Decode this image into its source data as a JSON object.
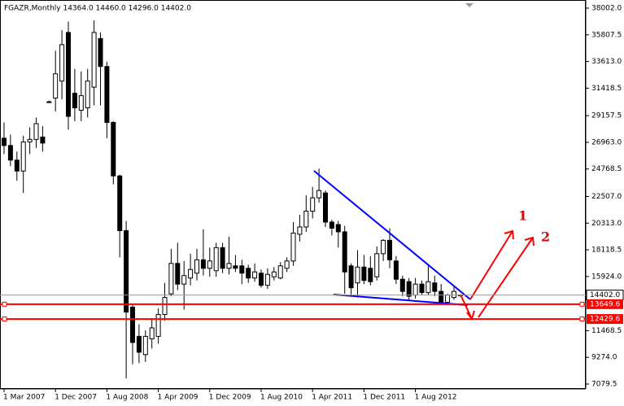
{
  "chart_data": {
    "type": "candlestick",
    "title": "FGAZR,Monthly  14364.0 14460.0 14296.0 14402.0",
    "categories": [
      "1 Mar 2007",
      null,
      null,
      null,
      null,
      null,
      null,
      null,
      "1 Dec 2007",
      null,
      null,
      null,
      null,
      null,
      null,
      null,
      "1 Aug 2008",
      null,
      null,
      null,
      null,
      null,
      null,
      null,
      "1 Apr 2009",
      null,
      null,
      null,
      null,
      null,
      null,
      null,
      "1 Dec 2009",
      null,
      null,
      null,
      null,
      null,
      null,
      null,
      "1 Aug 2010",
      null,
      null,
      null,
      null,
      null,
      null,
      null,
      "1 Apr 2011",
      null,
      null,
      null,
      null,
      null,
      null,
      null,
      "1 Dec 2011",
      null,
      null,
      null,
      null,
      null,
      null,
      null,
      "1 Aug 2012",
      null,
      null,
      null,
      null,
      null,
      null,
      null
    ],
    "open": [
      27300,
      26700,
      25500,
      24600,
      27000,
      27200,
      27400,
      30300,
      30600,
      32000,
      36000,
      31000,
      29600,
      29800,
      31500,
      35500,
      33200,
      28600,
      24200,
      19700,
      13400,
      11000,
      9500,
      10800,
      11000,
      12800,
      14500,
      17000,
      15300,
      15800,
      16200,
      17300,
      16600,
      16400,
      18300,
      16600,
      16800,
      16800,
      16600,
      15800,
      16200,
      15200,
      15900,
      15800,
      16600,
      17200,
      19400,
      20000,
      21300,
      22400,
      22800,
      20400,
      20200,
      19600,
      16800,
      15400,
      16700,
      16600,
      15900,
      17800,
      18900,
      17200,
      15700,
      15500,
      14400,
      15300,
      14600,
      15400,
      14700,
      13800,
      14200,
      14364
    ],
    "high": [
      28600,
      27600,
      26200,
      27500,
      28200,
      29000,
      28300,
      30400,
      34500,
      36200,
      36900,
      33000,
      32800,
      33000,
      37000,
      36000,
      33600,
      28700,
      24300,
      20500,
      13600,
      12000,
      11500,
      12500,
      13300,
      15400,
      18200,
      18700,
      17200,
      17800,
      18200,
      19800,
      18300,
      18700,
      18700,
      19200,
      17700,
      17300,
      16900,
      17000,
      16500,
      16600,
      16700,
      17100,
      17500,
      20400,
      21000,
      22600,
      23300,
      24800,
      23000,
      20600,
      20500,
      20100,
      17000,
      18100,
      17700,
      17600,
      18400,
      19000,
      19900,
      17600,
      16000,
      15800,
      15800,
      15600,
      16800,
      16000,
      15300,
      14500,
      15100,
      14460
    ],
    "low": [
      26000,
      25000,
      23800,
      22800,
      26000,
      26500,
      26200,
      30200,
      29500,
      30500,
      28000,
      28700,
      28700,
      29000,
      30000,
      30000,
      27300,
      23500,
      17500,
      7550,
      8700,
      8800,
      8900,
      10000,
      10400,
      12300,
      14300,
      14800,
      13200,
      15200,
      15600,
      16000,
      15900,
      15900,
      16200,
      16100,
      16300,
      15300,
      15400,
      15500,
      15000,
      14900,
      15600,
      15700,
      16300,
      16800,
      18800,
      19600,
      20700,
      22000,
      20000,
      19300,
      18300,
      14500,
      14300,
      14200,
      15300,
      15200,
      15600,
      17200,
      16600,
      15300,
      14300,
      13900,
      14100,
      14400,
      14400,
      14300,
      13600,
      13700,
      14000,
      14296
    ],
    "close": [
      26700,
      25500,
      24600,
      27000,
      27200,
      28500,
      26900,
      30300,
      32600,
      35000,
      29100,
      29800,
      30800,
      32000,
      36000,
      33200,
      28600,
      24200,
      19700,
      13000,
      10500,
      9700,
      11000,
      11700,
      12800,
      14200,
      17000,
      15300,
      16000,
      16500,
      17300,
      16600,
      17200,
      18300,
      16600,
      17000,
      16600,
      16200,
      15800,
      16300,
      15200,
      16100,
      16300,
      16800,
      17200,
      19500,
      20000,
      21300,
      22400,
      23000,
      20400,
      19900,
      19600,
      16300,
      15000,
      16700,
      15600,
      15500,
      17800,
      18900,
      17300,
      15700,
      14700,
      14300,
      15300,
      14600,
      15500,
      14700,
      13700,
      14400,
      14700,
      14402
    ],
    "up_color": "#ffffff",
    "down_color": "#000000",
    "ylim": [
      6678,
      38671
    ],
    "yticks": [
      {
        "value": 38002,
        "label": "38002.0"
      },
      {
        "value": 35807.5,
        "label": "35807.5"
      },
      {
        "value": 33613,
        "label": "33613.0"
      },
      {
        "value": 31418.5,
        "label": "31418.5"
      },
      {
        "value": 29157.5,
        "label": "29157.5"
      },
      {
        "value": 26963,
        "label": "26963.0"
      },
      {
        "value": 24768.5,
        "label": "24768.5"
      },
      {
        "value": 22507,
        "label": "22507.0"
      },
      {
        "value": 20313,
        "label": "20313.0"
      },
      {
        "value": 18118.5,
        "label": "18118.5"
      },
      {
        "value": 15924,
        "label": "15924.0"
      },
      {
        "value": 11468.5,
        "label": "11468.5"
      },
      {
        "value": 9274,
        "label": "9274.0"
      },
      {
        "value": 7079.5,
        "label": "7079.5"
      }
    ],
    "current_price": {
      "value": 14402,
      "label": "14402.0"
    },
    "levels": [
      {
        "value": 13649.6,
        "color": "#ff0000"
      },
      {
        "value": 12429.6,
        "color": "#ff0000"
      }
    ],
    "annotations": [
      "1",
      "2"
    ]
  }
}
